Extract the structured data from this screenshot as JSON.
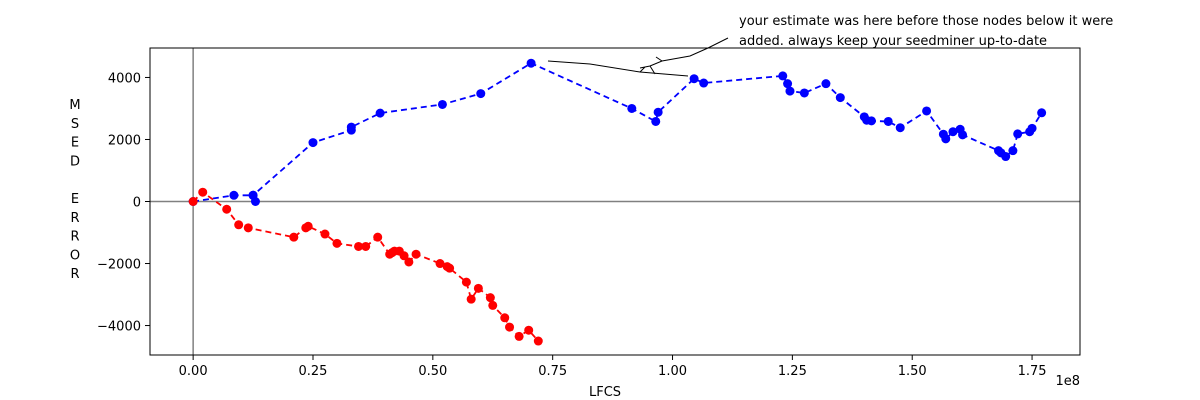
{
  "chart_data": {
    "type": "line",
    "title": "",
    "xlabel": "LFCS",
    "ylabel_letters": [
      "M",
      "S",
      "E",
      "D",
      "",
      "E",
      "R",
      "R",
      "O",
      "R"
    ],
    "x_offset_text": "1e8",
    "xlim": [
      -0.09,
      1.85
    ],
    "ylim": [
      -4950,
      4950
    ],
    "x_ticks": [
      0.0,
      0.25,
      0.5,
      0.75,
      1.0,
      1.25,
      1.5,
      1.75
    ],
    "x_tick_labels": [
      "0.00",
      "0.25",
      "0.50",
      "0.75",
      "1.00",
      "1.25",
      "1.50",
      "1.75"
    ],
    "y_ticks": [
      -4000,
      -2000,
      0,
      2000,
      4000
    ],
    "y_tick_labels": [
      "−4000",
      "−2000",
      "0",
      "2000",
      "4000"
    ],
    "reference_lines": {
      "x": 0,
      "y": 0,
      "color": "#808080"
    },
    "annotation": {
      "lines": [
        "your estimate was here before those nodes below it were",
        "added. always keep your seedminer up-to-date"
      ]
    },
    "series": [
      {
        "color": "#0000ff",
        "style": "dashed-with-markers",
        "x": [
          0.0,
          0.085,
          0.125,
          0.13,
          0.125,
          0.25,
          0.33,
          0.33,
          0.39,
          0.52,
          0.6,
          0.705,
          0.915,
          0.965,
          0.97,
          1.045,
          1.065,
          1.23,
          1.24,
          1.245,
          1.275,
          1.32,
          1.35,
          1.4,
          1.405,
          1.415,
          1.45,
          1.475,
          1.53,
          1.565,
          1.57,
          1.585,
          1.6,
          1.605,
          1.68,
          1.685,
          1.695,
          1.71,
          1.72,
          1.745,
          1.75,
          1.77
        ],
        "y": [
          0,
          200,
          200,
          0,
          200,
          1900,
          2300,
          2400,
          2850,
          3130,
          3480,
          4460,
          3000,
          2580,
          2880,
          3960,
          3820,
          4050,
          3800,
          3560,
          3500,
          3800,
          3350,
          2730,
          2620,
          2600,
          2580,
          2380,
          2920,
          2170,
          2020,
          2250,
          2330,
          2150,
          1640,
          1570,
          1450,
          1640,
          2180,
          2250,
          2360,
          2860
        ]
      },
      {
        "color": "#ff0000",
        "style": "dashed-with-markers",
        "x": [
          0.0,
          0.02,
          0.07,
          0.095,
          0.115,
          0.21,
          0.235,
          0.24,
          0.275,
          0.3,
          0.345,
          0.36,
          0.385,
          0.41,
          0.415,
          0.42,
          0.43,
          0.44,
          0.45,
          0.465,
          0.515,
          0.53,
          0.535,
          0.57,
          0.58,
          0.595,
          0.62,
          0.625,
          0.65,
          0.66,
          0.68,
          0.7,
          0.72
        ],
        "y": [
          0,
          300,
          -250,
          -750,
          -850,
          -1150,
          -850,
          -800,
          -1050,
          -1350,
          -1450,
          -1450,
          -1150,
          -1700,
          -1650,
          -1600,
          -1600,
          -1750,
          -1950,
          -1700,
          -2000,
          -2100,
          -2150,
          -2600,
          -3150,
          -2800,
          -3100,
          -3350,
          -3750,
          -4050,
          -4350,
          -4150,
          -4500
        ]
      }
    ]
  }
}
